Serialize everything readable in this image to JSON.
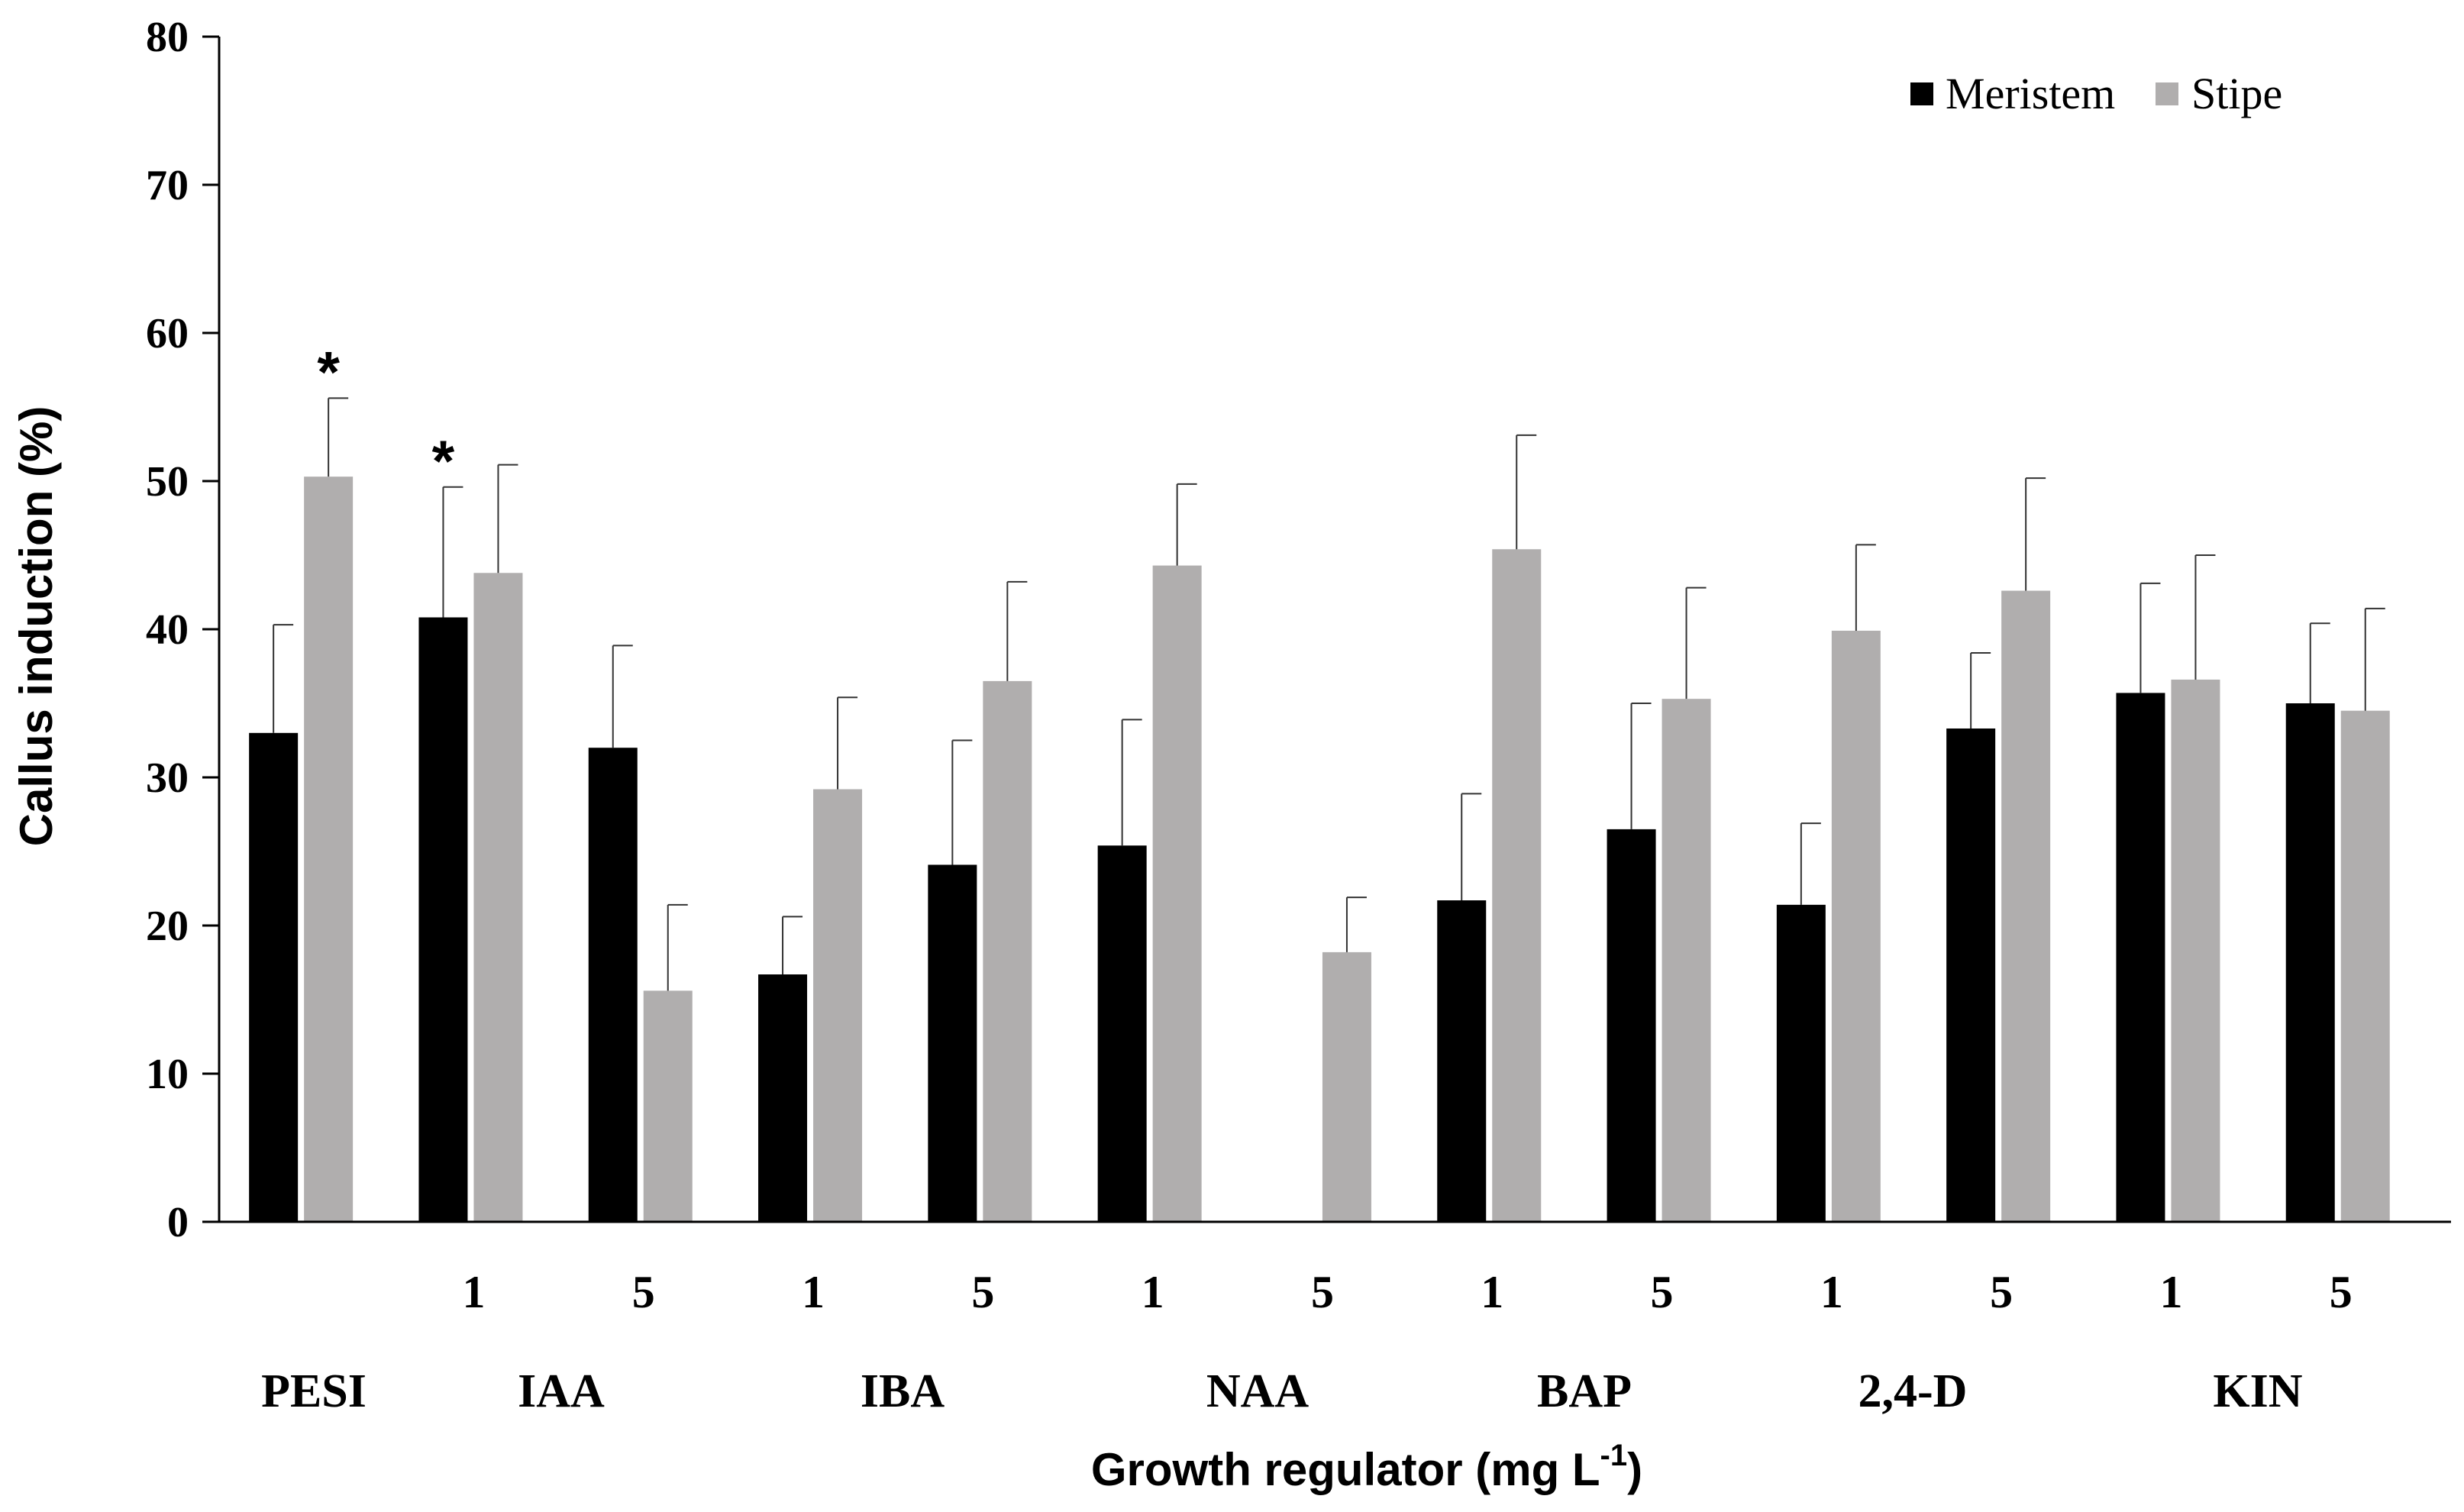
{
  "chart_data": {
    "type": "bar",
    "title": "",
    "xlabel": "Growth regulator (mg L",
    "xlabel_sup": "-1",
    "xlabel_tail": ")",
    "ylabel": "Callus induction (%)",
    "ylim": [
      0,
      80
    ],
    "yticks": [
      "0",
      "10",
      "20",
      "30",
      "40",
      "50",
      "60",
      "70",
      "80"
    ],
    "legend_position": "top-right",
    "categories": [
      {
        "group": "PESI",
        "conc": ""
      },
      {
        "group": "IAA",
        "conc": "1"
      },
      {
        "group": "IAA",
        "conc": "5"
      },
      {
        "group": "IBA",
        "conc": "1"
      },
      {
        "group": "IBA",
        "conc": "5"
      },
      {
        "group": "NAA",
        "conc": "1"
      },
      {
        "group": "NAA",
        "conc": "5"
      },
      {
        "group": "BAP",
        "conc": "1"
      },
      {
        "group": "BAP",
        "conc": "5"
      },
      {
        "group": "2,4-D",
        "conc": "1"
      },
      {
        "group": "2,4-D",
        "conc": "5"
      },
      {
        "group": "KIN",
        "conc": "1"
      },
      {
        "group": "KIN",
        "conc": "5"
      }
    ],
    "groups": [
      "PESI",
      "IAA",
      "IBA",
      "NAA",
      "BAP",
      "2,4-D",
      "KIN"
    ],
    "series": [
      {
        "name": "Meristem",
        "color": "#000000",
        "values": [
          33.0,
          40.8,
          32.0,
          16.7,
          24.1,
          25.4,
          0,
          21.7,
          26.5,
          21.4,
          33.3,
          35.7,
          35.0
        ],
        "errors": [
          7.3,
          8.8,
          6.9,
          3.9,
          8.4,
          8.5,
          0,
          7.2,
          8.5,
          5.5,
          5.1,
          7.4,
          5.4
        ],
        "significant": [
          false,
          true,
          false,
          false,
          false,
          false,
          false,
          false,
          false,
          false,
          false,
          false,
          false
        ]
      },
      {
        "name": "Stipe",
        "color": "#b0aeae",
        "values": [
          50.3,
          43.8,
          15.6,
          29.2,
          36.5,
          44.3,
          18.2,
          45.4,
          35.3,
          39.9,
          42.6,
          36.6,
          34.5
        ],
        "errors": [
          5.3,
          7.3,
          5.8,
          6.2,
          6.7,
          5.5,
          3.7,
          7.7,
          7.5,
          5.8,
          7.6,
          8.4,
          6.9
        ],
        "significant": [
          true,
          false,
          false,
          false,
          false,
          false,
          false,
          false,
          false,
          false,
          false,
          false,
          false
        ]
      }
    ],
    "significance_marker": "*"
  }
}
